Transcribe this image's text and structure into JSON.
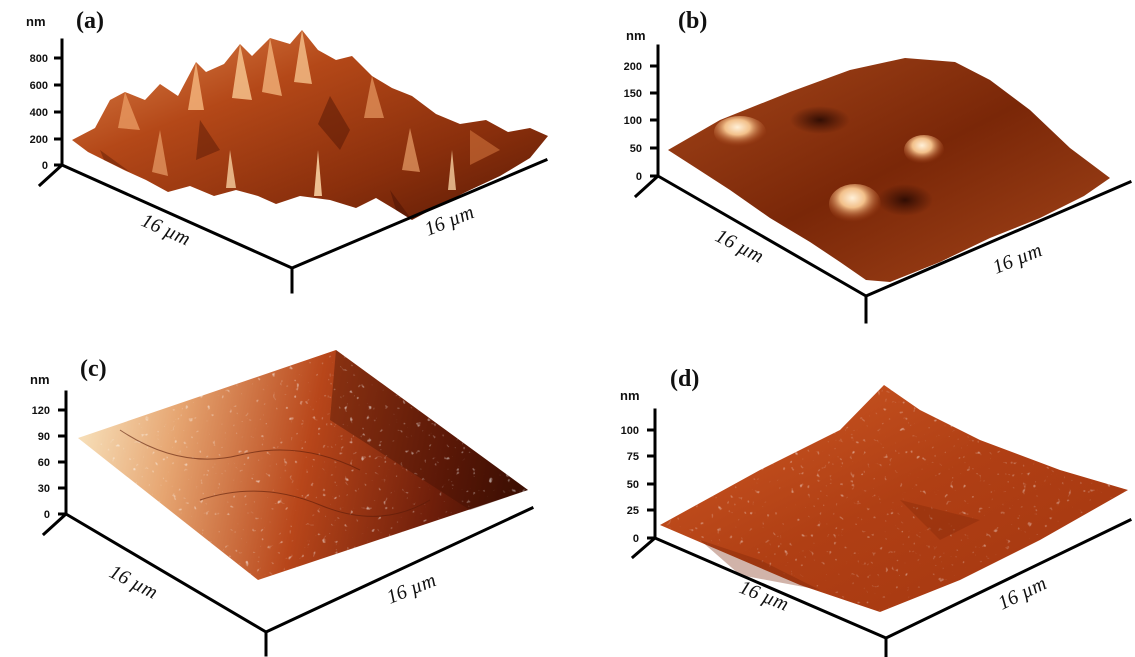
{
  "panels": [
    {
      "id": "a",
      "label": "(a)",
      "z_unit": "nm",
      "z_ticks": [
        "800",
        "600",
        "400",
        "200",
        "0"
      ],
      "x_size_label": "16 µm",
      "y_size_label": "16 µm",
      "surface": "rough, high peaks"
    },
    {
      "id": "b",
      "label": "(b)",
      "z_unit": "nm",
      "z_ticks": [
        "200",
        "150",
        "100",
        "50",
        "0"
      ],
      "x_size_label": "16 µm",
      "y_size_label": "16 µm",
      "surface": "smooth with a few bumps"
    },
    {
      "id": "c",
      "label": "(c)",
      "z_unit": "nm",
      "z_ticks": [
        "120",
        "90",
        "60",
        "30",
        "0"
      ],
      "x_size_label": "16 µm",
      "y_size_label": "16 µm",
      "surface": "tilted, speckled"
    },
    {
      "id": "d",
      "label": "(d)",
      "z_unit": "nm",
      "z_ticks": [
        "100",
        "75",
        "50",
        "25",
        "0"
      ],
      "x_size_label": "16 µm",
      "y_size_label": "16 µm",
      "surface": "flat, speckled"
    }
  ],
  "colors": {
    "dark": "#3a0d02",
    "mid": "#b8461a",
    "light": "#f6dcb5",
    "axis": "#000000"
  }
}
